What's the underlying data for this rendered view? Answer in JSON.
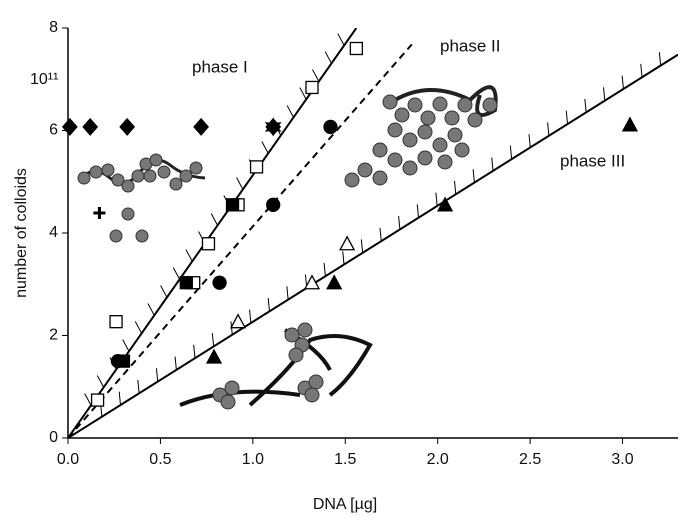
{
  "chart_data": {
    "type": "scatter",
    "x_label": "DNA [µg]",
    "y_label": "number of colloids",
    "y_multiplier": "10¹¹",
    "annotations": [
      "phase I",
      "phase II",
      "phase III"
    ],
    "xlim": [
      0,
      3.3
    ],
    "ylim": [
      0,
      8
    ],
    "xticks": [
      {
        "value": 0,
        "label": "0.0"
      },
      {
        "value": 0.5,
        "label": "0.5"
      },
      {
        "value": 1,
        "label": "1.0"
      },
      {
        "value": 1.5,
        "label": "1.5"
      },
      {
        "value": 2,
        "label": "2.0"
      },
      {
        "value": 2.5,
        "label": "2.5"
      },
      {
        "value": 3,
        "label": "3.0"
      }
    ],
    "yticks": [
      0,
      2,
      4,
      6,
      8
    ],
    "series": [
      {
        "marker": "square",
        "filled": false,
        "color": "#000000",
        "x": [
          0.16,
          0.26,
          0.68,
          0.76,
          0.92,
          1.02,
          1.32,
          1.56
        ],
        "values": [
          0.74,
          2.27,
          3.03,
          3.79,
          4.55,
          5.29,
          6.84,
          7.6
        ]
      },
      {
        "marker": "square",
        "filled": true,
        "color": "#000000",
        "x": [
          0.3,
          0.64,
          0.89
        ],
        "values": [
          1.5,
          3.03,
          4.55
        ]
      },
      {
        "marker": "circle",
        "filled": true,
        "color": "#000000",
        "x": [
          0.27,
          0.82,
          1.11,
          1.42
        ],
        "values": [
          1.5,
          3.03,
          4.55,
          6.07
        ]
      },
      {
        "marker": "triangle",
        "filled": false,
        "color": "#000000",
        "x": [
          0.92,
          1.32,
          1.51
        ],
        "values": [
          2.27,
          3.03,
          3.79
        ]
      },
      {
        "marker": "triangle",
        "filled": true,
        "color": "#000000",
        "x": [
          0.79,
          1.44,
          2.04,
          3.04
        ],
        "values": [
          1.58,
          3.03,
          4.55,
          6.11
        ]
      },
      {
        "marker": "diamond",
        "filled": true,
        "color": "#000000",
        "x": [
          0.01,
          0.12,
          0.32,
          0.72,
          1.11
        ],
        "values": [
          6.07,
          6.07,
          6.07,
          6.07,
          6.07
        ]
      },
      {
        "marker": "star",
        "filled": true,
        "color": "#000000",
        "x": [
          1.11
        ],
        "values": [
          6.07
        ]
      },
      {
        "marker": "plus",
        "filled": true,
        "color": "#000000",
        "x": [
          0.17
        ],
        "values": [
          4.39
        ]
      }
    ],
    "lines": [
      {
        "style": "solid",
        "hatched": true,
        "x": [
          0,
          1.56
        ],
        "values": [
          0,
          8
        ]
      },
      {
        "style": "dashed",
        "hatched": false,
        "x": [
          0,
          1.86
        ],
        "values": [
          0,
          7.68
        ]
      },
      {
        "style": "solid",
        "hatched": true,
        "x": [
          0,
          3.3
        ],
        "values": [
          0,
          7.48
        ]
      }
    ]
  }
}
